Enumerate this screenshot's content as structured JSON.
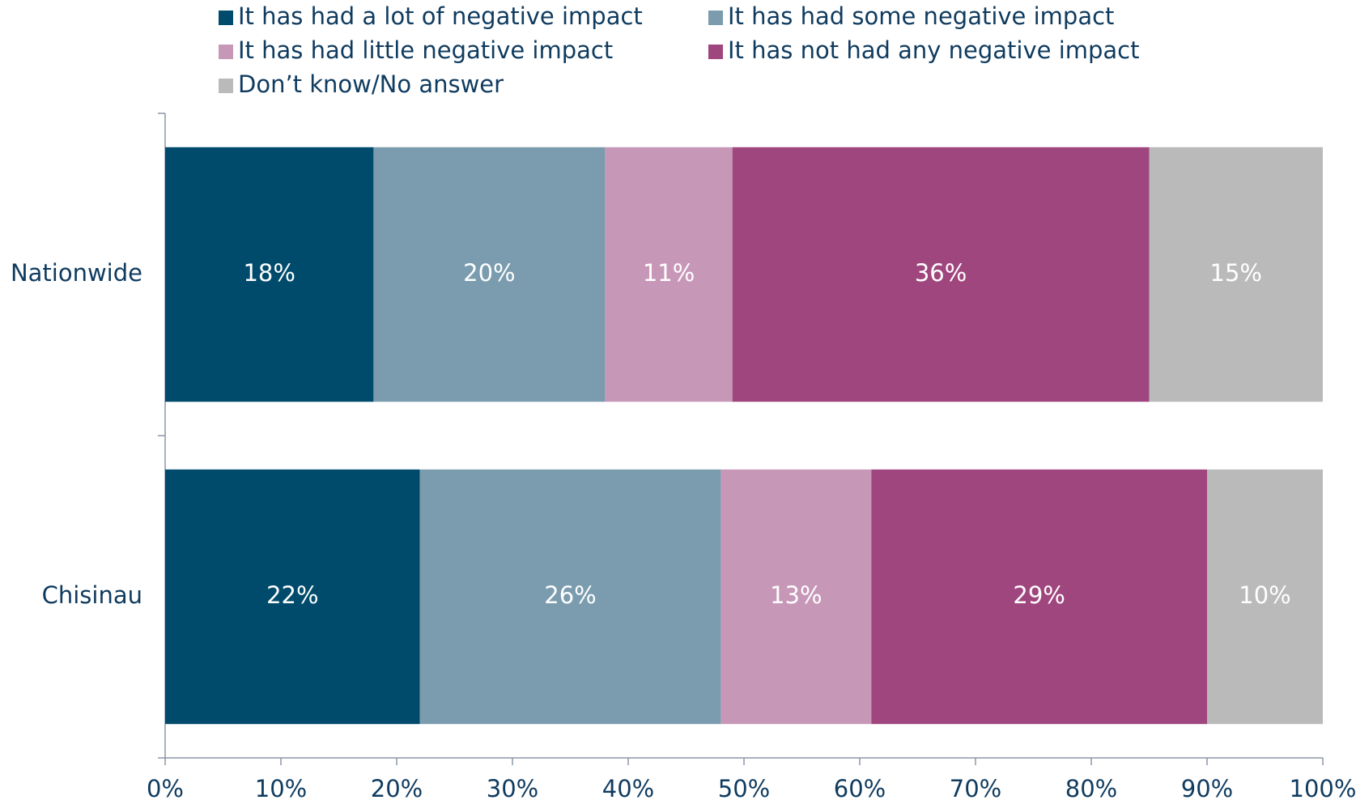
{
  "chart_data": {
    "type": "stacked-bar-horizontal",
    "categories": [
      "Nationwide",
      "Chisinau"
    ],
    "series": [
      {
        "name": "It has had a lot of negative impact",
        "color": "#004b6b",
        "values": [
          18,
          22
        ],
        "value_labels": [
          "18%",
          "22%"
        ]
      },
      {
        "name": "It has had some negative impact",
        "color": "#7a9cae",
        "values": [
          20,
          26
        ],
        "value_labels": [
          "20%",
          "26%"
        ]
      },
      {
        "name": "It has had little negative impact",
        "color": "#c797b8",
        "values": [
          11,
          13
        ],
        "value_labels": [
          "11%",
          "13%"
        ]
      },
      {
        "name": "It has not had any negative impact",
        "color": "#a0467e",
        "values": [
          36,
          29
        ],
        "value_labels": [
          "36%",
          "29%"
        ]
      },
      {
        "name": "Don’t know/No answer",
        "color": "#bababa",
        "values": [
          15,
          10
        ],
        "value_labels": [
          "15%",
          "10%"
        ]
      }
    ],
    "xlim": [
      0,
      100
    ],
    "xticks": [
      {
        "value": 0,
        "label": "0%"
      },
      {
        "value": 10,
        "label": "10%"
      },
      {
        "value": 20,
        "label": "20%"
      },
      {
        "value": 30,
        "label": "30%"
      },
      {
        "value": 40,
        "label": "40%"
      },
      {
        "value": 50,
        "label": "50%"
      },
      {
        "value": 60,
        "label": "60%"
      },
      {
        "value": 70,
        "label": "70%"
      },
      {
        "value": 80,
        "label": "80%"
      },
      {
        "value": 90,
        "label": "90%"
      },
      {
        "value": 100,
        "label": "100%"
      }
    ],
    "legend": "top"
  }
}
